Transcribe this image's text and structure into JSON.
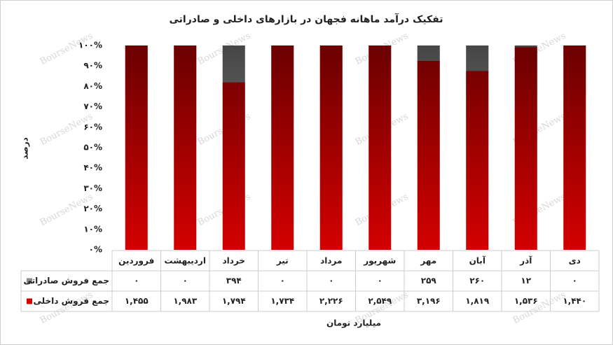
{
  "chart_data": {
    "type": "stacked_percent_bar",
    "title": "تفکیک درآمد ماهانه فجهان در بازارهای داخلی و صادراتی",
    "y_label": "درصد",
    "x_label": "میلیارد تومان",
    "watermark": "BourseNews",
    "categories": [
      "فروردین",
      "اردیبهشت",
      "خرداد",
      "تیر",
      "مرداد",
      "شهریور",
      "مهر",
      "آبان",
      "آذر",
      "دی"
    ],
    "series": [
      {
        "name": "جمع فروش داخلی",
        "color": "#d40000",
        "values": [
          1455,
          1983,
          1794,
          1734,
          2226,
          2549,
          3196,
          1819,
          1536,
          1440
        ],
        "value_labels": [
          "۱,۴۵۵",
          "۱,۹۸۳",
          "۱,۷۹۴",
          "۱,۷۳۴",
          "۲,۲۲۶",
          "۲,۵۴۹",
          "۳,۱۹۶",
          "۱,۸۱۹",
          "۱,۵۳۶",
          "۱,۴۴۰"
        ]
      },
      {
        "name": "جمع فروش صادراتی",
        "color": "#8c8c8c",
        "values": [
          0,
          0,
          394,
          0,
          0,
          0,
          259,
          260,
          12,
          0
        ],
        "value_labels": [
          "۰",
          "۰",
          "۳۹۴",
          "۰",
          "۰",
          "۰",
          "۲۵۹",
          "۲۶۰",
          "۱۲",
          "۰"
        ]
      }
    ],
    "ylim": [
      0,
      100
    ],
    "yticks": [
      {
        "value": 0,
        "label": "۰%"
      },
      {
        "value": 10,
        "label": "۱۰%"
      },
      {
        "value": 20,
        "label": "۲۰%"
      },
      {
        "value": 30,
        "label": "۳۰%"
      },
      {
        "value": 40,
        "label": "۴۰%"
      },
      {
        "value": 50,
        "label": "۵۰%"
      },
      {
        "value": 60,
        "label": "۶۰%"
      },
      {
        "value": 70,
        "label": "۷۰%"
      },
      {
        "value": 80,
        "label": "۸۰%"
      },
      {
        "value": 90,
        "label": "۹۰%"
      },
      {
        "value": 100,
        "label": "۱۰۰%"
      }
    ],
    "grid": false
  }
}
